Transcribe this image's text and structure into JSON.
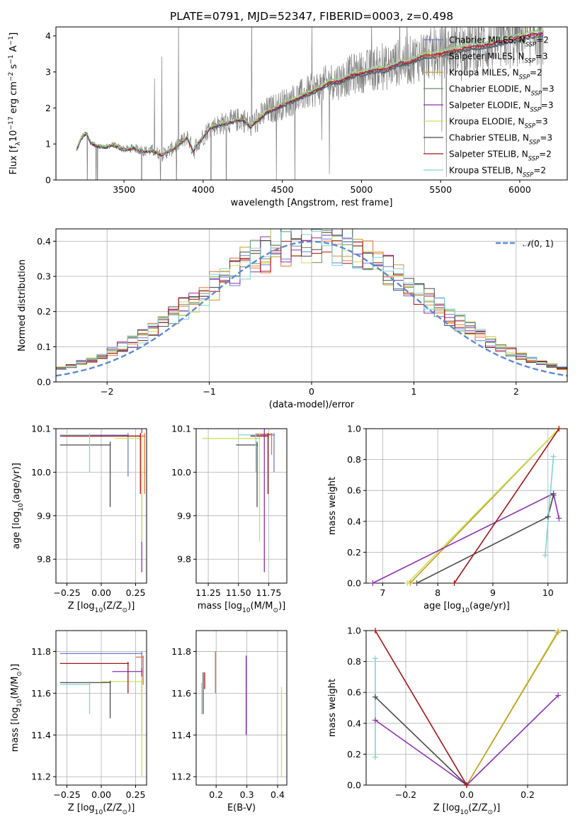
{
  "figure": {
    "title": "PLATE=0791, MJD=52347, FIBERID=0003, z=0.498"
  },
  "models": [
    {
      "name": "Chabrier MILES, N",
      "nssp": "=2",
      "color": "#6a7fd6"
    },
    {
      "name": "Salpeter MILES, N",
      "nssp": "=3",
      "color": "#e8703a"
    },
    {
      "name": "Kroupa MILES, N",
      "nssp": "=2",
      "color": "#c99a22"
    },
    {
      "name": "Chabrier ELODIE, N",
      "nssp": "=3",
      "color": "#6b8f6b"
    },
    {
      "name": "Salpeter ELODIE, N",
      "nssp": "=3",
      "color": "#8e2fb0"
    },
    {
      "name": "Kroupa ELODIE, N",
      "nssp": "=3",
      "color": "#c9e35a"
    },
    {
      "name": "Chabrier STELIB, N",
      "nssp": "=3",
      "color": "#4a4a4a"
    },
    {
      "name": "Salpeter STELIB, N",
      "nssp": "=2",
      "color": "#a31515"
    },
    {
      "name": "Kroupa STELIB, N",
      "nssp": "=2",
      "color": "#7fd4d4"
    }
  ],
  "chart_data": [
    {
      "id": "spectrum",
      "type": "line",
      "xlabel": "wavelength [Angstrom, rest frame]",
      "ylabel_parts": [
        "Flux [f",
        "λ",
        "10",
        "−17",
        " erg cm",
        "−2",
        " s",
        "−1",
        " A",
        "−1",
        "]"
      ],
      "xlim": [
        3070,
        6300
      ],
      "ylim": [
        0,
        4.25
      ],
      "xticks": [
        3500,
        4000,
        4500,
        5000,
        5500,
        6000
      ],
      "yticks": [
        0,
        1,
        2,
        3,
        4
      ],
      "data_color": "#808080",
      "continuum": [
        [
          3200,
          0.85
        ],
        [
          3230,
          1.18
        ],
        [
          3260,
          1.32
        ],
        [
          3290,
          1.05
        ],
        [
          3330,
          0.95
        ],
        [
          3380,
          0.92
        ],
        [
          3430,
          0.98
        ],
        [
          3480,
          0.88
        ],
        [
          3520,
          0.85
        ],
        [
          3560,
          0.9
        ],
        [
          3620,
          0.8
        ],
        [
          3680,
          0.82
        ],
        [
          3740,
          0.7
        ],
        [
          3800,
          0.85
        ],
        [
          3860,
          1.05
        ],
        [
          3900,
          1.2
        ],
        [
          3940,
          0.8
        ],
        [
          3960,
          1.0
        ],
        [
          3990,
          1.15
        ],
        [
          4040,
          1.45
        ],
        [
          4100,
          1.55
        ],
        [
          4150,
          1.6
        ],
        [
          4200,
          1.65
        ],
        [
          4250,
          1.7
        ],
        [
          4300,
          1.5
        ],
        [
          4350,
          1.7
        ],
        [
          4400,
          1.9
        ],
        [
          4450,
          2.0
        ],
        [
          4500,
          2.1
        ],
        [
          4550,
          2.2
        ],
        [
          4600,
          2.3
        ],
        [
          4650,
          2.4
        ],
        [
          4700,
          2.5
        ],
        [
          4750,
          2.6
        ],
        [
          4800,
          2.75
        ],
        [
          4850,
          2.75
        ],
        [
          4900,
          2.85
        ],
        [
          4950,
          2.95
        ],
        [
          5000,
          3.0
        ],
        [
          5050,
          3.05
        ],
        [
          5100,
          3.1
        ],
        [
          5150,
          3.1
        ],
        [
          5200,
          3.2
        ],
        [
          5250,
          3.3
        ],
        [
          5300,
          3.3
        ],
        [
          5350,
          3.4
        ],
        [
          5400,
          3.5
        ],
        [
          5450,
          3.5
        ],
        [
          5500,
          3.55
        ],
        [
          5550,
          3.6
        ],
        [
          5600,
          3.65
        ],
        [
          5650,
          3.7
        ],
        [
          5700,
          3.75
        ],
        [
          5750,
          3.75
        ],
        [
          5800,
          3.8
        ],
        [
          5850,
          3.85
        ],
        [
          5900,
          3.9
        ],
        [
          5950,
          3.95
        ],
        [
          6000,
          4.0
        ],
        [
          6050,
          4.05
        ],
        [
          6100,
          4.1
        ],
        [
          6150,
          4.1
        ]
      ]
    },
    {
      "id": "residuals",
      "type": "bar",
      "xlabel": "(data-model)/error",
      "ylabel": "Normed distribution",
      "xlim": [
        -2.5,
        2.5
      ],
      "ylim": [
        0,
        0.435
      ],
      "xticks": [
        -2,
        -1,
        0,
        1,
        2
      ],
      "yticks": [
        0.0,
        0.1,
        0.2,
        0.3,
        0.4
      ],
      "bin_width": 0.1,
      "legend_label": "(0, 1)",
      "legend_symbol": "𝒩",
      "gaussian": {
        "mean": 0,
        "sigma": 1,
        "color": "#5b8ad6"
      }
    },
    {
      "id": "age-vs-Z",
      "type": "scatter",
      "xlabel_parts": [
        "Z [log",
        "10",
        "(Z/Z",
        "⊙",
        ")]"
      ],
      "ylabel_parts": [
        "age  [log",
        "10",
        "(age/yr)]"
      ],
      "xlim": [
        -0.33,
        0.33
      ],
      "ylim": [
        9.745,
        10.1
      ],
      "xticks": [
        -0.25,
        0.0,
        0.25
      ],
      "yticks": [
        9.8,
        9.9,
        10.0,
        10.1
      ],
      "marks": [
        {
          "m": 0,
          "x": [
            -0.3,
            0.2
          ],
          "y": [
            9.99,
            10.09
          ]
        },
        {
          "m": 1,
          "x": [
            -0.28,
            0.32
          ],
          "y": [
            9.95,
            10.09
          ]
        },
        {
          "m": 4,
          "x": [
            0.15,
            0.3
          ],
          "y": [
            9.77,
            10.12
          ]
        },
        {
          "m": 5,
          "x": [
            0.1,
            0.3
          ],
          "y": [
            9.84,
            10.09
          ]
        },
        {
          "m": 6,
          "x": [
            -0.3,
            0.07
          ],
          "y": [
            9.92,
            10.07
          ]
        },
        {
          "m": 7,
          "x": [
            -0.3,
            0.29
          ],
          "y": [
            9.95,
            10.09
          ]
        },
        {
          "m": 8,
          "x": [
            -0.3,
            -0.08
          ],
          "y": [
            10.0,
            10.09
          ]
        }
      ]
    },
    {
      "id": "age-vs-mass",
      "type": "scatter",
      "xlabel_parts": [
        "mass [log",
        "10",
        "(M/M",
        "⊙",
        ")]"
      ],
      "xlim": [
        11.15,
        11.9
      ],
      "ylim": [
        9.745,
        10.1
      ],
      "xticks": [
        11.25,
        11.5,
        11.75
      ],
      "yticks": [
        9.8,
        9.9,
        10.0,
        10.1
      ],
      "marks": [
        {
          "m": 0,
          "x": [
            11.6,
            11.8
          ],
          "y": [
            10.0,
            10.09
          ]
        },
        {
          "m": 1,
          "x": [
            11.64,
            11.78
          ],
          "y": [
            10.04,
            10.09
          ]
        },
        {
          "m": 4,
          "x": [
            11.4,
            11.72
          ],
          "y": [
            9.77,
            10.12
          ]
        },
        {
          "m": 5,
          "x": [
            11.2,
            11.68
          ],
          "y": [
            9.84,
            10.09
          ]
        },
        {
          "m": 6,
          "x": [
            11.48,
            11.66
          ],
          "y": [
            9.92,
            10.07
          ]
        },
        {
          "m": 7,
          "x": [
            11.6,
            11.75
          ],
          "y": [
            9.95,
            10.09
          ]
        },
        {
          "m": 8,
          "x": [
            11.5,
            11.65
          ],
          "y": [
            10.0,
            10.09
          ]
        }
      ]
    },
    {
      "id": "massweight-vs-age",
      "type": "line",
      "xlabel_parts": [
        "age  [log",
        "10",
        "(age/yr)]"
      ],
      "ylabel": "mass weight",
      "xlim": [
        6.7,
        10.35
      ],
      "ylim": [
        0,
        1
      ],
      "xticks": [
        7,
        8,
        9,
        10
      ],
      "yticks": [
        0.0,
        0.2,
        0.4,
        0.6,
        0.8,
        1.0
      ],
      "series": [
        {
          "m": 2,
          "x": [
            7.5,
            10.2
          ],
          "y": [
            0.0,
            1.0
          ]
        },
        {
          "m": 5,
          "x": [
            7.45,
            10.2
          ],
          "y": [
            0.0,
            1.0
          ]
        },
        {
          "m": 4,
          "x": [
            6.82,
            10.1,
            10.2
          ],
          "y": [
            0.0,
            0.58,
            0.42
          ]
        },
        {
          "m": 6,
          "x": [
            7.62,
            10.0,
            10.1
          ],
          "y": [
            0.0,
            0.43,
            0.57
          ]
        },
        {
          "m": 7,
          "x": [
            8.3,
            10.2
          ],
          "y": [
            0.0,
            1.0
          ]
        },
        {
          "m": 8,
          "x": [
            9.95,
            10.1
          ],
          "y": [
            0.18,
            0.82
          ]
        }
      ]
    },
    {
      "id": "mass-vs-Z",
      "type": "scatter",
      "xlabel_parts": [
        "Z [log",
        "10",
        "(Z/Z",
        "⊙",
        ")]"
      ],
      "ylabel_parts": [
        "mass [log",
        "10",
        "(M/M",
        "⊙",
        ")]"
      ],
      "xlim": [
        -0.33,
        0.33
      ],
      "ylim": [
        11.16,
        11.9
      ],
      "xticks": [
        -0.25,
        0.0,
        0.25
      ],
      "yticks": [
        11.2,
        11.4,
        11.6,
        11.8
      ],
      "marks": [
        {
          "m": 0,
          "x": [
            -0.3,
            0.3
          ],
          "y": [
            11.6,
            11.8
          ]
        },
        {
          "m": 1,
          "x": [
            0.25,
            0.31
          ],
          "y": [
            11.64,
            11.78
          ]
        },
        {
          "m": 4,
          "x": [
            0.08,
            0.3
          ],
          "y": [
            11.4,
            11.72
          ]
        },
        {
          "m": 5,
          "x": [
            0.0,
            0.3
          ],
          "y": [
            11.2,
            11.68
          ]
        },
        {
          "m": 6,
          "x": [
            -0.3,
            0.07
          ],
          "y": [
            11.48,
            11.66
          ]
        },
        {
          "m": 7,
          "x": [
            -0.3,
            0.2
          ],
          "y": [
            11.6,
            11.75
          ]
        },
        {
          "m": 8,
          "x": [
            -0.3,
            -0.08
          ],
          "y": [
            11.5,
            11.65
          ]
        }
      ]
    },
    {
      "id": "mass-vs-ebv",
      "type": "scatter",
      "xlabel": "E(B-V)",
      "xlim": [
        0.135,
        0.43
      ],
      "ylim": [
        11.16,
        11.9
      ],
      "xticks": [
        0.2,
        0.3,
        0.4
      ],
      "yticks": [
        11.2,
        11.4,
        11.6,
        11.8
      ],
      "marks": [
        {
          "m": 0,
          "x": [
            0.2,
            0.2
          ],
          "y": [
            11.6,
            11.8
          ]
        },
        {
          "m": 1,
          "x": [
            0.2,
            0.2
          ],
          "y": [
            11.62,
            11.8
          ]
        },
        {
          "m": 4,
          "x": [
            0.3,
            0.3
          ],
          "y": [
            11.4,
            11.78
          ]
        },
        {
          "m": 5,
          "x": [
            0.415,
            0.415
          ],
          "y": [
            11.2,
            11.63
          ]
        },
        {
          "m": 6,
          "x": [
            0.16,
            0.16
          ],
          "y": [
            11.5,
            11.7
          ]
        },
        {
          "m": 7,
          "x": [
            0.165,
            0.165
          ],
          "y": [
            11.62,
            11.7
          ]
        },
        {
          "m": 8,
          "x": [
            0.155,
            0.155
          ],
          "y": [
            11.5,
            11.65
          ]
        }
      ]
    },
    {
      "id": "massweight-vs-Z",
      "type": "line",
      "xlabel_parts": [
        "Z [log",
        "10",
        "(Z/Z",
        "⊙",
        ")]"
      ],
      "ylabel": "mass weight",
      "xlim": [
        -0.33,
        0.33
      ],
      "ylim": [
        0,
        1
      ],
      "xticks": [
        -0.2,
        0.0,
        0.2
      ],
      "yticks": [
        0.0,
        0.2,
        0.4,
        0.6,
        0.8,
        1.0
      ],
      "series": [
        {
          "m": 5,
          "x": [
            0.0,
            0.3
          ],
          "y": [
            0.0,
            1.0
          ]
        },
        {
          "m": 2,
          "x": [
            0.0,
            0.3
          ],
          "y": [
            0.0,
            0.99
          ]
        },
        {
          "m": 4,
          "x": [
            0.0,
            0.3
          ],
          "y": [
            0.0,
            0.58
          ]
        },
        {
          "m": 4,
          "x": [
            -0.3,
            0.0
          ],
          "y": [
            0.42,
            0.0
          ]
        },
        {
          "m": 6,
          "x": [
            -0.3,
            0.0
          ],
          "y": [
            0.57,
            0.0
          ]
        },
        {
          "m": 7,
          "x": [
            -0.3,
            0.0
          ],
          "y": [
            1.0,
            0.0
          ]
        },
        {
          "m": 8,
          "x": [
            -0.3,
            -0.3
          ],
          "y": [
            0.18,
            0.82
          ]
        }
      ]
    }
  ]
}
